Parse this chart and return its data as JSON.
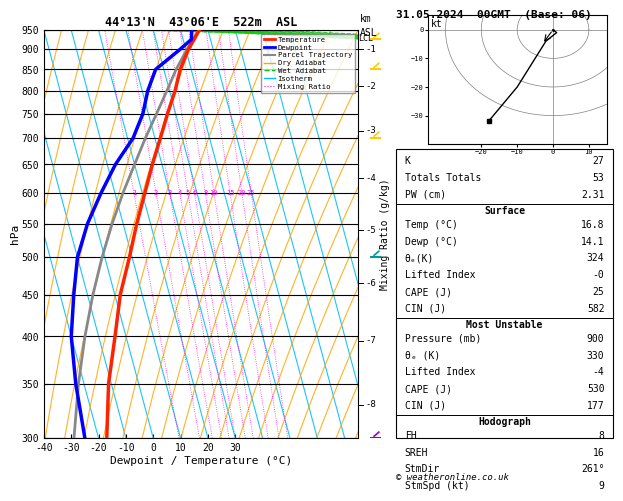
{
  "title_left": "44°13'N  43°06'E  522m  ASL",
  "title_right": "31.05.2024  00GMT  (Base: 06)",
  "xlabel": "Dewpoint / Temperature (°C)",
  "ylabel_left": "hPa",
  "pressure_levels": [
    300,
    350,
    400,
    450,
    500,
    550,
    600,
    650,
    700,
    750,
    800,
    850,
    900,
    950
  ],
  "temp_range": [
    -40,
    35
  ],
  "isotherm_color": "#00bfff",
  "dryadiabat_color": "#ffa500",
  "wetadiabat_color": "#00cc00",
  "mixingratio_color": "#ff00ff",
  "temp_profile_color": "#ff2200",
  "dewp_profile_color": "#0000ff",
  "parcel_color": "#888888",
  "stats": {
    "K": 27,
    "Totals_Totals": 53,
    "PW_cm": 2.31,
    "Surface_Temp": 16.8,
    "Surface_Dewp": 14.1,
    "theta_e_K": 324,
    "Lifted_Index": "-0",
    "CAPE_J": 25,
    "CIN_J": 582,
    "MU_Pressure_mb": 900,
    "MU_theta_e_K": 330,
    "MU_Lifted_Index": -4,
    "MU_CAPE_J": 530,
    "MU_CIN_J": 177,
    "EH": 8,
    "SREH": 16,
    "StmDir": "261°",
    "StmSpd_kt": 9
  },
  "km_asl_ticks": [
    1,
    2,
    3,
    4,
    5,
    6,
    7,
    8
  ],
  "km_asl_pressures": [
    900,
    810,
    715,
    625,
    540,
    465,
    395,
    330
  ],
  "lcl_pressure": 927,
  "temp_profile": {
    "pressure": [
      950,
      925,
      900,
      850,
      800,
      750,
      700,
      650,
      600,
      550,
      500,
      450,
      400,
      350,
      300
    ],
    "temp": [
      16.8,
      14.0,
      11.0,
      6.0,
      2.0,
      -3.0,
      -8.0,
      -13.5,
      -19.0,
      -25.0,
      -31.0,
      -38.0,
      -44.0,
      -51.0,
      -57.0
    ]
  },
  "dewp_profile": {
    "pressure": [
      950,
      925,
      900,
      850,
      800,
      750,
      700,
      650,
      600,
      550,
      500,
      450,
      400,
      350,
      300
    ],
    "temp": [
      14.1,
      13.0,
      8.0,
      -3.0,
      -8.0,
      -12.0,
      -18.0,
      -27.0,
      -35.0,
      -43.0,
      -50.0,
      -55.0,
      -60.0,
      -63.0,
      -65.0
    ]
  },
  "parcel_profile": {
    "pressure": [
      950,
      900,
      850,
      800,
      750,
      700,
      650,
      600,
      550,
      500,
      450,
      400,
      350,
      300
    ],
    "temp": [
      16.8,
      10.5,
      4.5,
      -1.0,
      -7.0,
      -13.5,
      -20.0,
      -27.0,
      -34.0,
      -41.0,
      -48.0,
      -55.0,
      -62.0,
      -69.0
    ]
  },
  "hodo_u": [
    0,
    1,
    -2,
    -5,
    -10,
    -18
  ],
  "hodo_v": [
    0,
    -1,
    -4,
    -10,
    -20,
    -32
  ],
  "hodo_xlim": [
    -35,
    15
  ],
  "hodo_ylim": [
    -40,
    5
  ],
  "copyright": "© weatheronline.co.uk"
}
